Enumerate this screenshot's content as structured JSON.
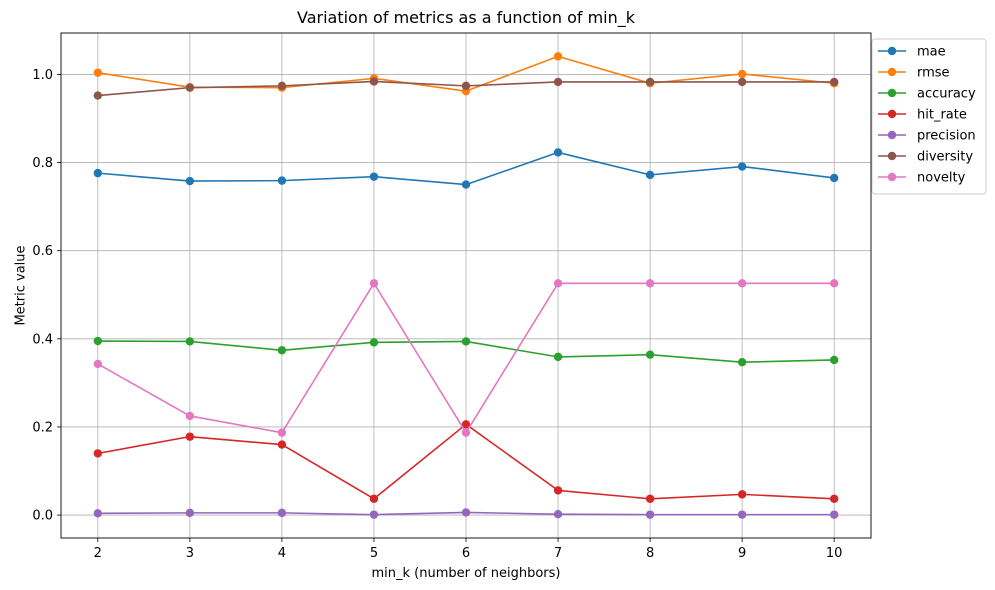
{
  "chart_data": {
    "type": "line",
    "title": "Variation of metrics as a function of min_k",
    "xlabel": "min_k (number of neighbors)",
    "ylabel": "Metric value",
    "x": [
      2,
      3,
      4,
      5,
      6,
      7,
      8,
      9,
      10
    ],
    "xlim": [
      1.6,
      10.4
    ],
    "ylim": [
      -0.052,
      1.094
    ],
    "yticks": [
      0.0,
      0.2,
      0.4,
      0.6,
      0.8,
      1.0
    ],
    "ytick_labels": [
      "0.0",
      "0.2",
      "0.4",
      "0.6",
      "0.8",
      "1.0"
    ],
    "grid": true,
    "legend_position": "outside-top-right",
    "series": [
      {
        "name": "mae",
        "color": "#1f77b4",
        "values": [
          0.776,
          0.758,
          0.759,
          0.768,
          0.75,
          0.823,
          0.772,
          0.791,
          0.765
        ]
      },
      {
        "name": "rmse",
        "color": "#ff7f0e",
        "values": [
          1.004,
          0.971,
          0.97,
          0.991,
          0.962,
          1.041,
          0.98,
          1.001,
          0.98
        ]
      },
      {
        "name": "accuracy",
        "color": "#2ca02c",
        "values": [
          0.395,
          0.394,
          0.374,
          0.392,
          0.394,
          0.359,
          0.364,
          0.347,
          0.352
        ]
      },
      {
        "name": "hit_rate",
        "color": "#d62728",
        "values": [
          0.14,
          0.178,
          0.16,
          0.037,
          0.206,
          0.056,
          0.037,
          0.047,
          0.037
        ]
      },
      {
        "name": "precision",
        "color": "#9467bd",
        "values": [
          0.004,
          0.005,
          0.005,
          0.001,
          0.006,
          0.002,
          0.001,
          0.001,
          0.001
        ]
      },
      {
        "name": "diversity",
        "color": "#8c564b",
        "values": [
          0.952,
          0.97,
          0.974,
          0.984,
          0.974,
          0.983,
          0.983,
          0.983,
          0.983
        ]
      },
      {
        "name": "novelty",
        "color": "#e377c2",
        "values": [
          0.343,
          0.225,
          0.187,
          0.526,
          0.187,
          0.526,
          0.526,
          0.526,
          0.526
        ]
      }
    ]
  }
}
